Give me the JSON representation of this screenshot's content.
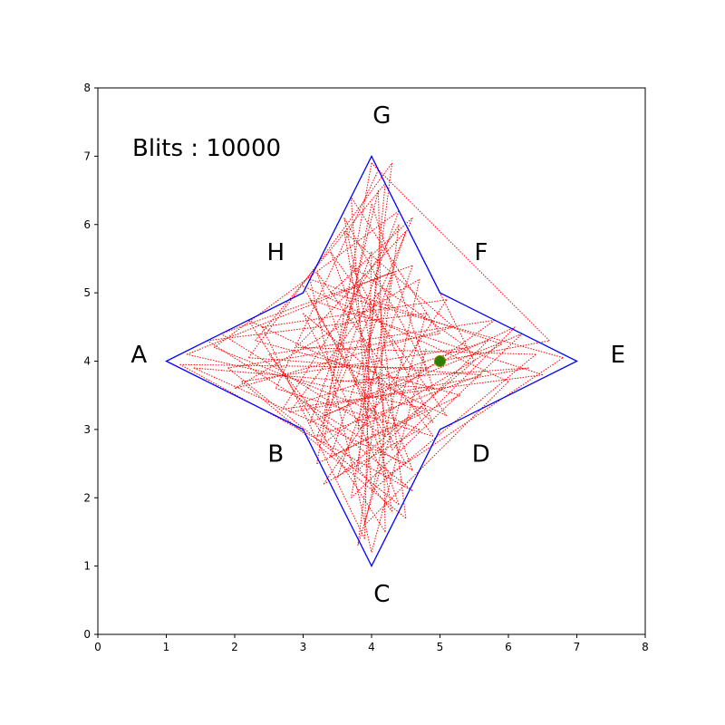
{
  "chart_data": {
    "type": "scatter",
    "title": "",
    "xlabel": "",
    "ylabel": "",
    "xlim": [
      0,
      8
    ],
    "ylim": [
      0,
      8
    ],
    "xticks": [
      "0",
      "1",
      "2",
      "3",
      "4",
      "5",
      "6",
      "7",
      "8"
    ],
    "yticks": [
      "0",
      "1",
      "2",
      "3",
      "4",
      "5",
      "6",
      "7",
      "8"
    ],
    "grid": false,
    "annotation": "Blits : 10000",
    "boundary": {
      "color": "#0000ff",
      "vertices": [
        {
          "label": "A",
          "x": 1,
          "y": 4
        },
        {
          "label": "B",
          "x": 3,
          "y": 3
        },
        {
          "label": "C",
          "x": 4,
          "y": 1
        },
        {
          "label": "D",
          "x": 5,
          "y": 3
        },
        {
          "label": "E",
          "x": 7,
          "y": 4
        },
        {
          "label": "F",
          "x": 5,
          "y": 5
        },
        {
          "label": "G",
          "x": 4,
          "y": 7
        },
        {
          "label": "H",
          "x": 3,
          "y": 5
        }
      ]
    },
    "vertex_labels": [
      {
        "text": "A",
        "x": 0.6,
        "y": 4.1
      },
      {
        "text": "B",
        "x": 2.6,
        "y": 2.65
      },
      {
        "text": "C",
        "x": 4.15,
        "y": 0.6
      },
      {
        "text": "D",
        "x": 5.6,
        "y": 2.65
      },
      {
        "text": "E",
        "x": 7.6,
        "y": 4.1
      },
      {
        "text": "F",
        "x": 5.6,
        "y": 5.6
      },
      {
        "text": "G",
        "x": 4.15,
        "y": 7.6
      },
      {
        "text": "H",
        "x": 2.6,
        "y": 5.6
      }
    ],
    "trajectory": {
      "color": "#ff0000",
      "style": "dotted",
      "points": [
        [
          5.0,
          4.0
        ],
        [
          6.6,
          4.3
        ],
        [
          4.0,
          6.9
        ],
        [
          3.2,
          2.5
        ],
        [
          4.8,
          3.3
        ],
        [
          1.3,
          4.1
        ],
        [
          4.3,
          5.3
        ],
        [
          3.7,
          2.0
        ],
        [
          6.2,
          4.4
        ],
        [
          3.3,
          3.2
        ],
        [
          4.1,
          6.5
        ],
        [
          4.2,
          1.5
        ],
        [
          2.2,
          4.6
        ],
        [
          5.1,
          3.2
        ],
        [
          3.4,
          5.6
        ],
        [
          4.6,
          2.4
        ],
        [
          1.6,
          4.3
        ],
        [
          4.8,
          4.7
        ],
        [
          3.8,
          1.3
        ],
        [
          4.4,
          6.0
        ],
        [
          2.7,
          3.3
        ],
        [
          6.5,
          3.8
        ],
        [
          3.1,
          4.9
        ],
        [
          4.5,
          2.5
        ],
        [
          1.4,
          3.9
        ],
        [
          4.9,
          3.6
        ],
        [
          4.0,
          6.3
        ],
        [
          3.3,
          2.8
        ],
        [
          5.8,
          4.6
        ],
        [
          2.5,
          4.1
        ],
        [
          4.3,
          1.8
        ],
        [
          3.6,
          5.9
        ],
        [
          5.2,
          4.5
        ],
        [
          2.0,
          3.6
        ],
        [
          4.7,
          5.2
        ],
        [
          3.9,
          1.6
        ],
        [
          6.0,
          3.7
        ],
        [
          3.0,
          5.1
        ],
        [
          4.2,
          2.9
        ],
        [
          1.8,
          4.4
        ],
        [
          4.6,
          5.4
        ],
        [
          3.5,
          2.3
        ],
        [
          5.5,
          4.0
        ],
        [
          4.1,
          6.8
        ],
        [
          2.6,
          3.6
        ],
        [
          4.9,
          2.9
        ],
        [
          3.2,
          5.3
        ],
        [
          4.4,
          1.9
        ],
        [
          1.9,
          3.9
        ],
        [
          5.0,
          4.4
        ],
        [
          3.7,
          6.4
        ],
        [
          4.0,
          2.1
        ],
        [
          6.4,
          4.1
        ],
        [
          2.9,
          4.2
        ],
        [
          4.5,
          5.9
        ],
        [
          3.4,
          2.6
        ],
        [
          5.3,
          3.5
        ],
        [
          2.3,
          4.3
        ],
        [
          4.2,
          6.6
        ],
        [
          3.8,
          2.4
        ],
        [
          5.7,
          4.3
        ],
        [
          3.0,
          3.4
        ],
        [
          4.6,
          2.1
        ],
        [
          1.2,
          3.95
        ],
        [
          4.8,
          3.9
        ],
        [
          3.6,
          6.1
        ],
        [
          4.3,
          2.7
        ],
        [
          6.1,
          4.5
        ],
        [
          3.1,
          3.1
        ],
        [
          4.0,
          5.6
        ],
        [
          3.9,
          1.4
        ],
        [
          2.4,
          4.5
        ],
        [
          5.1,
          4.9
        ],
        [
          3.3,
          2.2
        ],
        [
          4.7,
          3.0
        ],
        [
          1.7,
          4.2
        ],
        [
          4.4,
          6.2
        ],
        [
          3.5,
          3.7
        ],
        [
          6.3,
          3.9
        ],
        [
          2.8,
          3.25
        ],
        [
          4.1,
          5.0
        ],
        [
          4.5,
          1.7
        ],
        [
          2.1,
          3.7
        ],
        [
          5.4,
          4.2
        ],
        [
          3.7,
          5.4
        ],
        [
          4.9,
          3.1
        ],
        [
          3.0,
          4.7
        ],
        [
          4.2,
          2.3
        ],
        [
          6.8,
          4.05
        ],
        [
          3.4,
          5.0
        ],
        [
          4.6,
          6.1
        ],
        [
          3.2,
          2.9
        ],
        [
          5.6,
          3.8
        ],
        [
          2.2,
          4.05
        ],
        [
          4.3,
          6.9
        ],
        [
          3.8,
          3.0
        ],
        [
          5.9,
          4.25
        ],
        [
          3.1,
          5.2
        ],
        [
          4.0,
          1.2
        ],
        [
          4.8,
          4.2
        ]
      ]
    },
    "marker": {
      "x": 5.0,
      "y": 4.0,
      "color": "#2e7d00"
    }
  }
}
